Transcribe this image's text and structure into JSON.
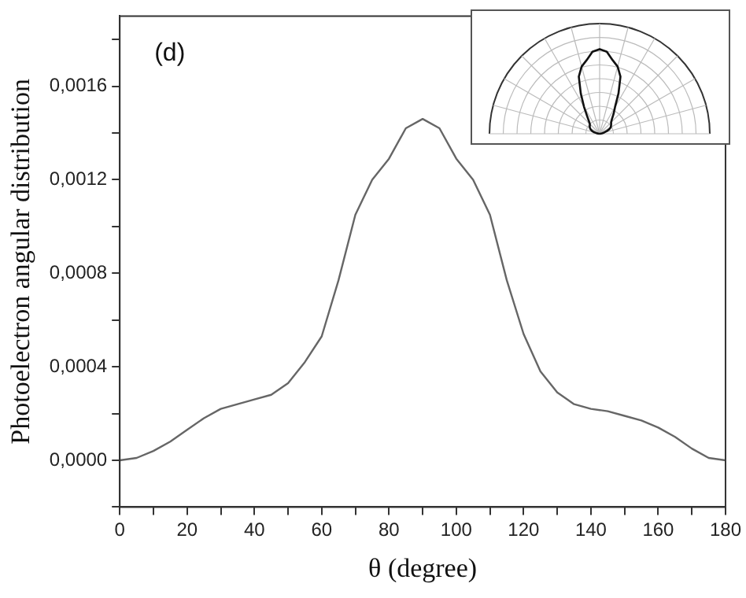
{
  "chart_data": {
    "type": "line",
    "xlabel": "θ (degree)",
    "ylabel": "Photoelectron angular distribution",
    "annotations": [
      "(d)"
    ],
    "x": [
      0,
      5,
      10,
      15,
      20,
      25,
      30,
      35,
      40,
      45,
      50,
      55,
      60,
      65,
      70,
      75,
      80,
      85,
      90,
      95,
      100,
      105,
      110,
      115,
      120,
      125,
      130,
      135,
      140,
      145,
      150,
      155,
      160,
      165,
      170,
      175,
      180
    ],
    "series": [
      {
        "color": "#666666",
        "values": [
          0,
          1e-05,
          4e-05,
          8e-05,
          0.00013,
          0.00018,
          0.00022,
          0.00024,
          0.00026,
          0.00028,
          0.00033,
          0.00042,
          0.00053,
          0.00077,
          0.00105,
          0.0012,
          0.00129,
          0.00142,
          0.00146,
          0.00142,
          0.00129,
          0.0012,
          0.00105,
          0.00077,
          0.00054,
          0.00038,
          0.00029,
          0.00024,
          0.00022,
          0.00021,
          0.00019,
          0.00017,
          0.00014,
          0.0001,
          5e-05,
          1e-05,
          0
        ]
      }
    ],
    "xlim": [
      0,
      180
    ],
    "xticks": [
      0,
      {
        "value": 10,
        "label": null
      },
      20,
      {
        "value": 30,
        "label": null
      },
      40,
      {
        "value": 50,
        "label": null
      },
      60,
      {
        "value": 70,
        "label": null
      },
      80,
      {
        "value": 90,
        "label": null
      },
      100,
      {
        "value": 110,
        "label": null
      },
      120,
      {
        "value": 130,
        "label": null
      },
      140,
      {
        "value": 150,
        "label": null
      },
      160,
      {
        "value": 170,
        "label": null
      },
      180
    ],
    "ylim": [
      -0.0002,
      0.0019
    ],
    "yticks": [
      {
        "value": -0.0002,
        "label": null
      },
      {
        "value": 0,
        "label": "0,0000"
      },
      {
        "value": 0.0002,
        "label": null
      },
      {
        "value": 0.0004,
        "label": "0,0004"
      },
      {
        "value": 0.0006,
        "label": null
      },
      {
        "value": 0.0008,
        "label": "0,0008"
      },
      {
        "value": 0.001,
        "label": null
      },
      {
        "value": 0.0012,
        "label": "0,0012"
      },
      {
        "value": 0.0014,
        "label": null
      },
      {
        "value": 0.0016,
        "label": "0,0016"
      },
      {
        "value": 0.0018,
        "label": null
      }
    ],
    "grid": false,
    "legend": false,
    "marker": "none",
    "line_style": "solid"
  }
}
